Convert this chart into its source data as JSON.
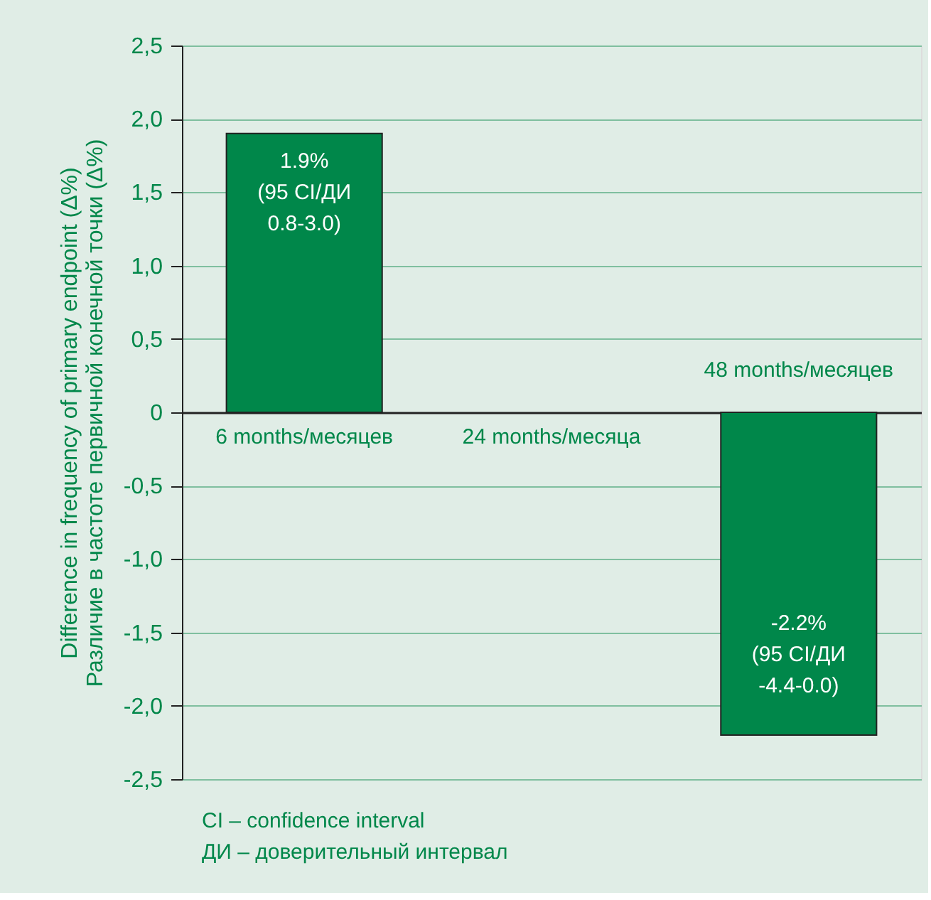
{
  "chart_data": {
    "type": "bar",
    "categories": [
      "6 months/месяцев",
      "24 months/месяца",
      "48 months/месяцев"
    ],
    "values": [
      1.9,
      null,
      -2.2
    ],
    "color": "#00874a",
    "value_labels": [
      "1.9%\n(95 CI/ДИ\n0.8-3.0)",
      null,
      "-2.2%\n(95 CI/ДИ\n-4.4-0.0)"
    ],
    "ylabel": "Difference in frequency of primary endpoint (Δ%)\nРазличие в частоте первичной конечной точки (Δ%)",
    "ylim": [
      -2.5,
      2.5
    ],
    "yticks": [
      {
        "value": -2.5,
        "label": "-2,5"
      },
      {
        "value": -2,
        "label": "-2,0"
      },
      {
        "value": -1.5,
        "label": "-1,5"
      },
      {
        "value": -1,
        "label": "-1,0"
      },
      {
        "value": -0.5,
        "label": "-0,5"
      },
      0,
      {
        "value": 0.5,
        "label": "0,5"
      },
      {
        "value": 1,
        "label": "1,0"
      },
      {
        "value": 1.5,
        "label": "1,5"
      },
      {
        "value": 2,
        "label": "2,0"
      },
      {
        "value": 2.5,
        "label": "2,5"
      }
    ],
    "grid": "y",
    "annotations": [
      "CI – confidence interval",
      "ДИ – доверительный интервал"
    ]
  }
}
